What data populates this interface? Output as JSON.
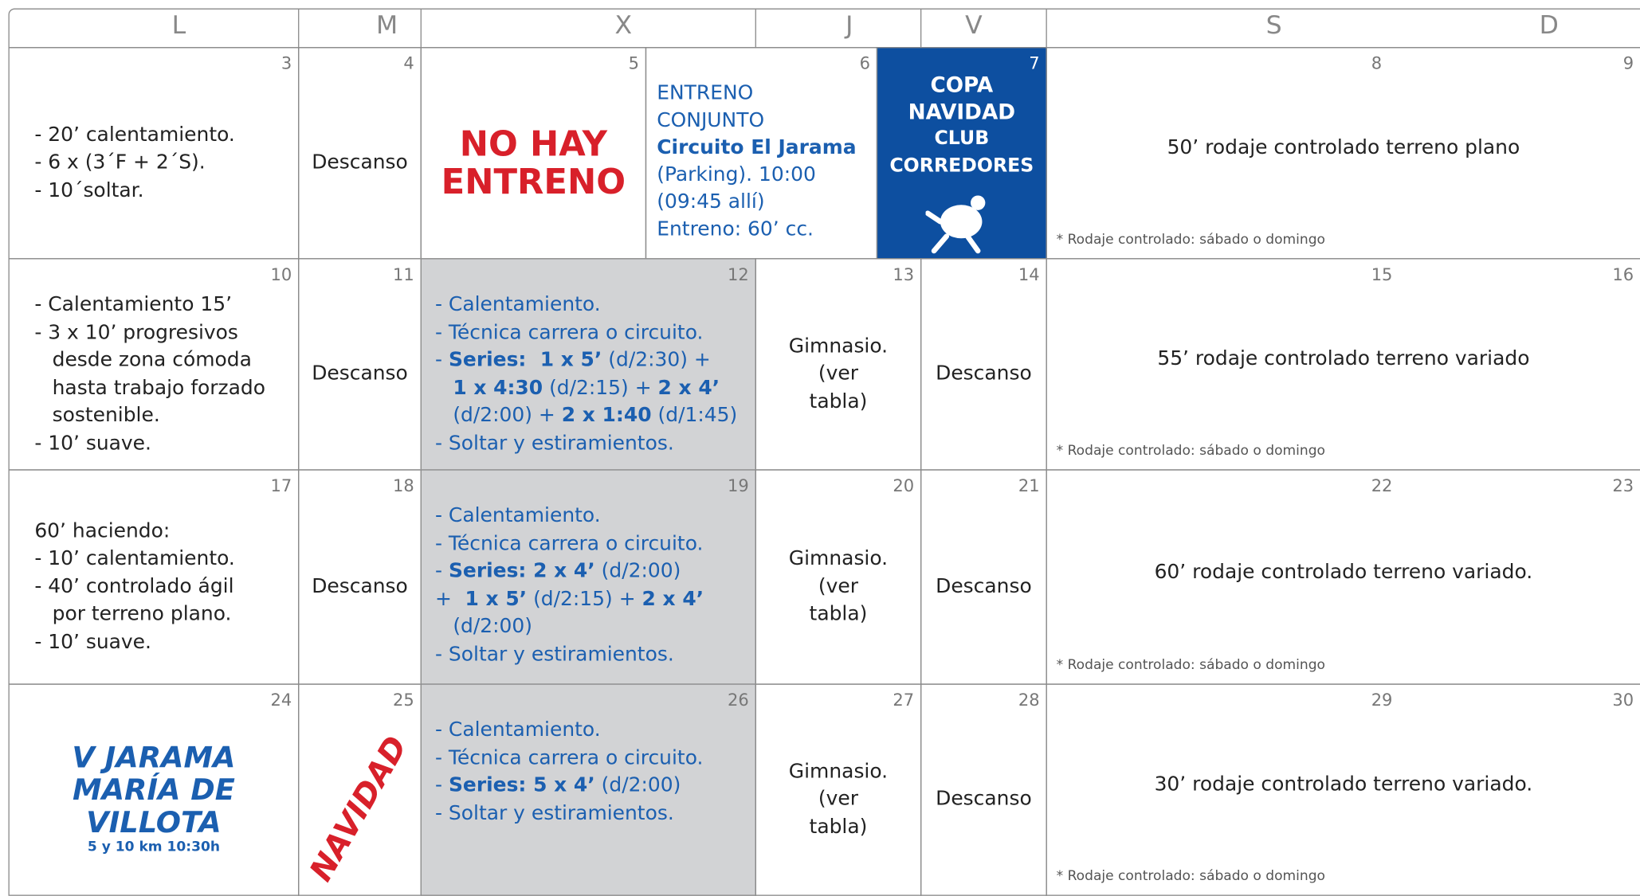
{
  "header": {
    "days": [
      "L",
      "M",
      "X",
      "J",
      "V",
      "S",
      "D"
    ]
  },
  "weeks": [
    {
      "days": [
        3,
        4,
        5,
        6,
        7,
        8,
        9
      ],
      "cells": [
        {
          "lines": [
            "- 20’ calentamiento.",
            "- 6 x (3´F + 2´S).",
            "- 10´soltar."
          ]
        },
        {
          "lines": [
            "Descanso"
          ]
        },
        {
          "lines": [
            "NO HAY",
            "ENTRENO"
          ]
        },
        {
          "lines": [
            "ENTRENO",
            "CONJUNTO",
            "Circuito El Jarama",
            "(Parking). 10:00",
            "(09:45 allí)",
            "Entreno: 60’ cc."
          ]
        },
        {
          "lines": [
            "COPA",
            "NAVIDAD",
            "CLUB",
            "CORREDORES"
          ]
        },
        {
          "lines": [
            "50’ rodaje controlado terreno plano"
          ],
          "note": "* Rodaje controlado: sábado o domingo"
        }
      ]
    },
    {
      "days": [
        10,
        11,
        12,
        13,
        14,
        15,
        16
      ],
      "cells": [
        {
          "lines": [
            "- Calentamiento 15’",
            "- 3 x 10’ progresivos",
            "desde zona cómoda",
            "hasta  trabajo forzado",
            "sostenible.",
            "- 10’ suave."
          ]
        },
        {
          "lines": [
            "Descanso"
          ]
        },
        {
          "lines": [
            "- Calentamiento.",
            "- Técnica carrera o circuito.",
            [
              "- ",
              "Series:  1 x 5’",
              " (d/2:30) +"
            ],
            [
              "1 x 4:30",
              " (d/2:15) + ",
              "2 x 4’"
            ],
            [
              "(d/2:00) + ",
              "2 x 1:40",
              " (d/1:45)"
            ],
            "- Soltar y estiramientos."
          ]
        },
        {
          "lines": [
            "Gimnasio.",
            "(ver",
            "tabla)"
          ]
        },
        {
          "lines": [
            "Descanso"
          ]
        },
        {
          "lines": [
            "55’ rodaje controlado terreno variado"
          ],
          "note": "* Rodaje controlado: sábado o domingo"
        }
      ]
    },
    {
      "days": [
        17,
        18,
        19,
        20,
        21,
        22,
        23
      ],
      "cells": [
        {
          "lines": [
            "60’ haciendo:",
            "- 10’ calentamiento.",
            "- 40’ controlado ágil",
            "por terreno plano.",
            "- 10’ suave."
          ]
        },
        {
          "lines": [
            "Descanso"
          ]
        },
        {
          "lines": [
            "- Calentamiento.",
            "- Técnica carrera o circuito.",
            [
              "- ",
              "Series: 2 x 4’",
              " (d/2:00)"
            ],
            [
              "+ ",
              " 1 x 5’",
              " (d/2:15) + ",
              "2 x 4’"
            ],
            "(d/2:00)",
            "- Soltar y estiramientos."
          ]
        },
        {
          "lines": [
            "Gimnasio.",
            "(ver",
            "tabla)"
          ]
        },
        {
          "lines": [
            "Descanso"
          ]
        },
        {
          "lines": [
            "60’ rodaje controlado terreno variado."
          ],
          "note": "* Rodaje controlado: sábado o domingo"
        }
      ]
    },
    {
      "days": [
        24,
        25,
        26,
        27,
        28,
        29,
        30
      ],
      "cells": [
        {
          "lines": [
            "V JARAMA",
            "MARÍA DE",
            "VILLOTA",
            "5 y 10 km 10:30h"
          ]
        },
        {
          "lines": [
            "NAVIDAD"
          ]
        },
        {
          "lines": [
            "- Calentamiento.",
            "- Técnica carrera o circuito.",
            [
              "- ",
              "Series: 5 x 4’",
              " (d/2:00)"
            ],
            "- Soltar y estiramientos."
          ]
        },
        {
          "lines": [
            "Gimnasio.",
            "(ver",
            "tabla)"
          ]
        },
        {
          "lines": [
            "Descanso"
          ]
        },
        {
          "lines": [
            "30’ rodaje controlado terreno variado."
          ],
          "note": "* Rodaje controlado: sábado o domingo"
        }
      ]
    }
  ]
}
